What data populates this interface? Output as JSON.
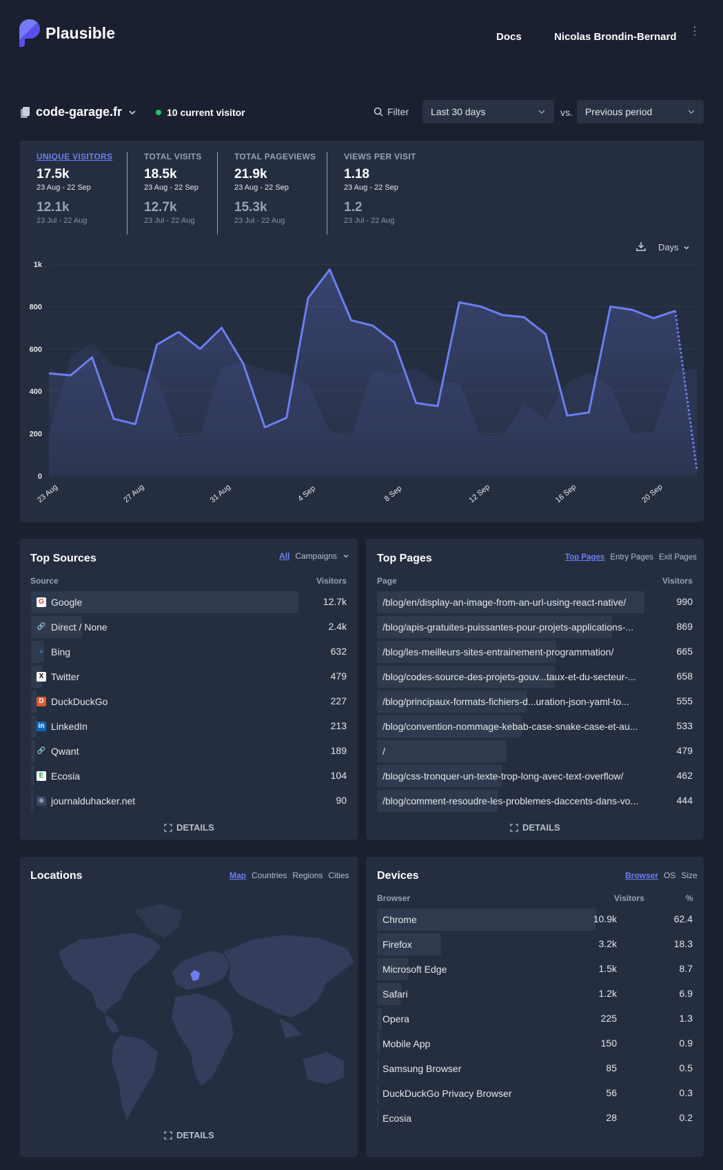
{
  "header": {
    "logo_text": "Plausible",
    "docs": "Docs",
    "user": "Nicolas Brondin-Bernard",
    "menu_glyph": "⋮"
  },
  "site_bar": {
    "site": "code-garage.fr",
    "current_visitors": "10 current visitor",
    "filter": "Filter",
    "period": "Last 30 days",
    "vs": "vs.",
    "compare": "Previous period"
  },
  "stats": [
    {
      "label": "UNIQUE VISITORS",
      "value": "17.5k",
      "range": "23 Aug - 22 Sep",
      "prev": "12.1k",
      "prev_range": "23 Jul - 22 Aug",
      "active": true
    },
    {
      "label": "TOTAL VISITS",
      "value": "18.5k",
      "range": "23 Aug - 22 Sep",
      "prev": "12.7k",
      "prev_range": "23 Jul - 22 Aug"
    },
    {
      "label": "TOTAL PAGEVIEWS",
      "value": "21.9k",
      "range": "23 Aug - 22 Sep",
      "prev": "15.3k",
      "prev_range": "23 Jul - 22 Aug"
    },
    {
      "label": "VIEWS PER VISIT",
      "value": "1.18",
      "range": "23 Aug - 22 Sep",
      "prev": "1.2",
      "prev_range": "23 Jul - 22 Aug"
    }
  ],
  "interval": "Days",
  "chart_data": {
    "type": "line",
    "x": [
      "23 Aug",
      "24 Aug",
      "25 Aug",
      "26 Aug",
      "27 Aug",
      "28 Aug",
      "29 Aug",
      "30 Aug",
      "31 Aug",
      "1 Sep",
      "2 Sep",
      "3 Sep",
      "4 Sep",
      "5 Sep",
      "6 Sep",
      "7 Sep",
      "8 Sep",
      "9 Sep",
      "10 Sep",
      "11 Sep",
      "12 Sep",
      "13 Sep",
      "14 Sep",
      "15 Sep",
      "16 Sep",
      "17 Sep",
      "18 Sep",
      "19 Sep",
      "20 Sep",
      "21 Sep",
      "22 Sep"
    ],
    "tick_labels": [
      "23 Aug",
      "27 Aug",
      "31 Aug",
      "4 Sep",
      "8 Sep",
      "12 Sep",
      "16 Sep",
      "20 Sep"
    ],
    "y_ticks": [
      "0",
      "200",
      "400",
      "600",
      "800",
      "1k"
    ],
    "ylim": [
      0,
      1000
    ],
    "series": [
      {
        "values": [
          485,
          475,
          560,
          270,
          245,
          620,
          680,
          600,
          700,
          530,
          230,
          275,
          840,
          975,
          735,
          710,
          630,
          345,
          330,
          820,
          800,
          760,
          750,
          670,
          285,
          300,
          800,
          785,
          745,
          780,
          30
        ],
        "color": "#6b7ff0"
      },
      {
        "values": [
          200,
          560,
          630,
          520,
          510,
          460,
          185,
          195,
          510,
          540,
          500,
          480,
          430,
          215,
          185,
          500,
          480,
          510,
          440,
          440,
          190,
          190,
          340,
          270,
          440,
          490,
          420,
          200,
          210,
          495,
          505
        ],
        "color": "#3a4462"
      }
    ],
    "grid": true
  },
  "top_sources": {
    "title": "Top Sources",
    "tabs": [
      "All",
      "Campaigns"
    ],
    "col_source": "Source",
    "col_visitors": "Visitors",
    "rows": [
      {
        "label": "Google",
        "value": "12.7k",
        "icon": "google-icon",
        "frac": 1.0
      },
      {
        "label": "Direct / None",
        "value": "2.4k",
        "icon": "link-icon",
        "frac": 0.19
      },
      {
        "label": "Bing",
        "value": "632",
        "icon": "bing-icon",
        "frac": 0.05
      },
      {
        "label": "Twitter",
        "value": "479",
        "icon": "twitter-x-icon",
        "frac": 0.04
      },
      {
        "label": "DuckDuckGo",
        "value": "227",
        "icon": "duckduckgo-icon",
        "frac": 0.02
      },
      {
        "label": "LinkedIn",
        "value": "213",
        "icon": "linkedin-icon",
        "frac": 0.02
      },
      {
        "label": "Qwant",
        "value": "189",
        "icon": "link-icon",
        "frac": 0.015
      },
      {
        "label": "Ecosia",
        "value": "104",
        "icon": "ecosia-icon",
        "frac": 0.01
      },
      {
        "label": "journalduhacker.net",
        "value": "90",
        "icon": "journalduhacker-icon",
        "frac": 0.007
      }
    ],
    "details": "DETAILS"
  },
  "top_pages": {
    "title": "Top Pages",
    "tabs": [
      "Top Pages",
      "Entry Pages",
      "Exit Pages"
    ],
    "col_page": "Page",
    "col_visitors": "Visitors",
    "rows": [
      {
        "label": "/blog/en/display-an-image-from-an-url-using-react-native/",
        "value": "990",
        "frac": 1.0
      },
      {
        "label": "/blog/apis-gratuites-puissantes-pour-projets-applications-...",
        "value": "869",
        "frac": 0.88
      },
      {
        "label": "/blog/les-meilleurs-sites-entrainement-programmation/",
        "value": "665",
        "frac": 0.67
      },
      {
        "label": "/blog/codes-source-des-projets-gouv...taux-et-du-secteur-...",
        "value": "658",
        "frac": 0.665
      },
      {
        "label": "/blog/principaux-formats-fichiers-d...uration-json-yaml-to...",
        "value": "555",
        "frac": 0.56
      },
      {
        "label": "/blog/convention-nommage-kebab-case-snake-case-et-au...",
        "value": "533",
        "frac": 0.54
      },
      {
        "label": "/",
        "value": "479",
        "frac": 0.485
      },
      {
        "label": "/blog/css-tronquer-un-texte-trop-long-avec-text-overflow/",
        "value": "462",
        "frac": 0.467
      },
      {
        "label": "/blog/comment-resoudre-les-problemes-daccents-dans-vo...",
        "value": "444",
        "frac": 0.45
      }
    ],
    "details": "DETAILS"
  },
  "locations": {
    "title": "Locations",
    "tabs": [
      "Map",
      "Countries",
      "Regions",
      "Cities"
    ],
    "details": "DETAILS"
  },
  "devices": {
    "title": "Devices",
    "tabs": [
      "Browser",
      "OS",
      "Size"
    ],
    "col_browser": "Browser",
    "col_visitors": "Visitors",
    "col_pct": "%",
    "rows": [
      {
        "label": "Chrome",
        "value": "10.9k",
        "pct": "62.4",
        "frac": 1.0
      },
      {
        "label": "Firefox",
        "value": "3.2k",
        "pct": "18.3",
        "frac": 0.293
      },
      {
        "label": "Microsoft Edge",
        "value": "1.5k",
        "pct": "8.7",
        "frac": 0.14
      },
      {
        "label": "Safari",
        "value": "1.2k",
        "pct": "6.9",
        "frac": 0.11
      },
      {
        "label": "Opera",
        "value": "225",
        "pct": "1.3",
        "frac": 0.021
      },
      {
        "label": "Mobile App",
        "value": "150",
        "pct": "0.9",
        "frac": 0.014
      },
      {
        "label": "Samsung Browser",
        "value": "85",
        "pct": "0.5",
        "frac": 0.008
      },
      {
        "label": "DuckDuckGo Privacy Browser",
        "value": "56",
        "pct": "0.3",
        "frac": 0.005
      },
      {
        "label": "Ecosia",
        "value": "28",
        "pct": "0.2",
        "frac": 0.003
      }
    ]
  }
}
